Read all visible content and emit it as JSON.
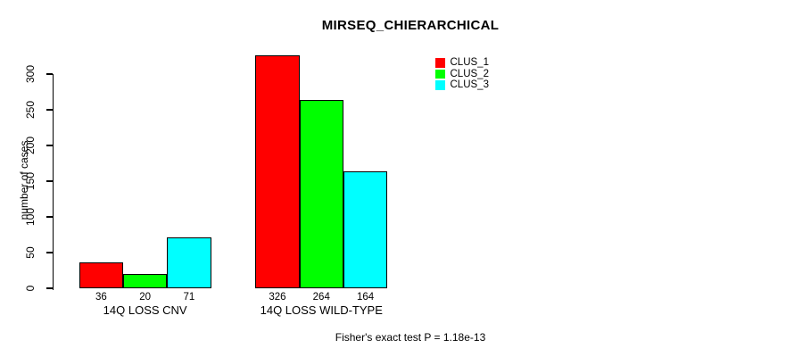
{
  "title": "MIRSEQ_CHIERARCHICAL",
  "ylabel": "number of cases",
  "footer": "Fisher's exact test P = 1.18e-13",
  "legend": {
    "items": [
      {
        "label": "CLUS_1",
        "color": "#FF0000"
      },
      {
        "label": "CLUS_2",
        "color": "#00FF00"
      },
      {
        "label": "CLUS_3",
        "color": "#00FFFF"
      }
    ]
  },
  "chart_data": {
    "type": "bar",
    "title": "MIRSEQ_CHIERARCHICAL",
    "xlabel": "",
    "ylabel": "number of cases",
    "categories": [
      "14Q LOSS CNV",
      "14Q LOSS WILD-TYPE"
    ],
    "series": [
      {
        "name": "CLUS_1",
        "color": "#FF0000",
        "values": [
          36,
          326
        ]
      },
      {
        "name": "CLUS_2",
        "color": "#00FF00",
        "values": [
          20,
          264
        ]
      },
      {
        "name": "CLUS_3",
        "color": "#00FFFF",
        "values": [
          71,
          164
        ]
      }
    ],
    "bar_value_labels": [
      [
        36,
        20,
        71
      ],
      [
        326,
        264,
        164
      ]
    ],
    "yticks": [
      0,
      50,
      100,
      150,
      200,
      250,
      300
    ],
    "ylim": [
      0,
      330
    ],
    "grid": false,
    "legend_position": "top-right",
    "annotation": "Fisher's exact test P = 1.18e-13",
    "bar_border_color": "#000000",
    "background_color": "#FFFFFF"
  }
}
